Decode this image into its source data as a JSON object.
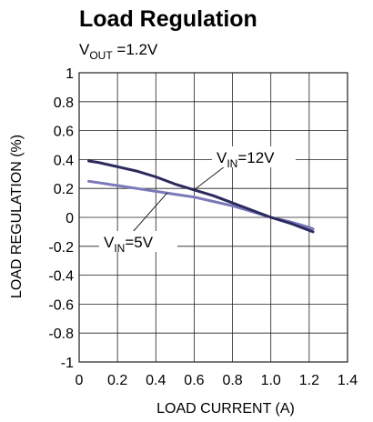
{
  "chart_data": {
    "type": "line",
    "title": "Load Regulation",
    "subtitle": {
      "main": "V",
      "sub": "OUT",
      "rest": " =1.2V"
    },
    "xlabel": "LOAD CURRENT (A)",
    "ylabel": "LOAD REGULATION (%)",
    "xlim": [
      0,
      1.4
    ],
    "ylim": [
      -1,
      1
    ],
    "x_ticks": [
      "0",
      "0.2",
      "0.4",
      "0.6",
      "0.8",
      "1.0",
      "1.2",
      "1.4"
    ],
    "y_ticks": [
      "1",
      "0.8",
      "0.6",
      "0.4",
      "0.2",
      "0",
      "-0.2",
      "-0.4",
      "-0.6",
      "-0.8",
      "-1"
    ],
    "grid": true,
    "series": [
      {
        "name": "VIN=12V",
        "label": {
          "main": "V",
          "sub": "IN",
          "rest": "=12V"
        },
        "color": "#2b2a5e",
        "x": [
          0.05,
          0.1,
          0.2,
          0.3,
          0.4,
          0.5,
          0.6,
          0.7,
          0.8,
          0.9,
          1.0,
          1.1,
          1.2,
          1.22
        ],
        "y": [
          0.39,
          0.38,
          0.35,
          0.32,
          0.28,
          0.23,
          0.19,
          0.15,
          0.1,
          0.05,
          0.0,
          -0.04,
          -0.09,
          -0.1
        ]
      },
      {
        "name": "VIN=5V",
        "label": {
          "main": "V",
          "sub": "IN",
          "rest": "=5V"
        },
        "color": "#7a78b8",
        "x": [
          0.05,
          0.1,
          0.2,
          0.3,
          0.4,
          0.5,
          0.6,
          0.7,
          0.8,
          0.9,
          1.0,
          1.1,
          1.2,
          1.22
        ],
        "y": [
          0.25,
          0.24,
          0.22,
          0.2,
          0.18,
          0.16,
          0.14,
          0.11,
          0.08,
          0.04,
          0.0,
          -0.03,
          -0.07,
          -0.08
        ]
      }
    ]
  }
}
